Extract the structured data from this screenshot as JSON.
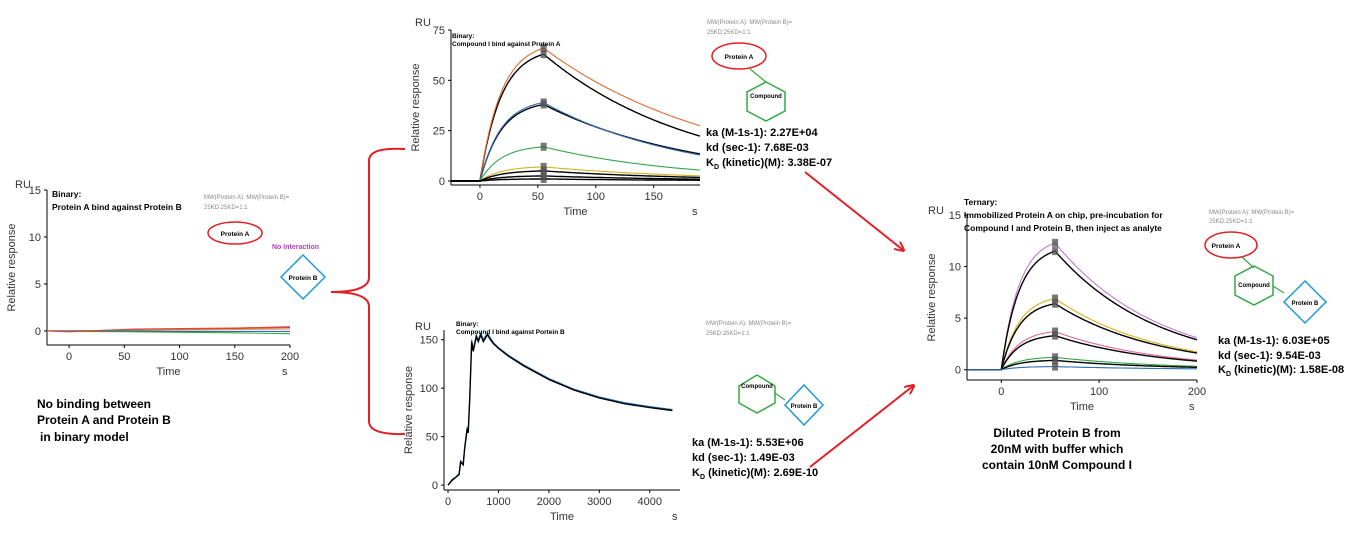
{
  "caption_left": [
    "No binding between",
    "Protein A and Protein B",
    "in binary model"
  ],
  "caption_right": [
    "Diluted Protein B from",
    "20nM with buffer which",
    "contain 10nM Compound I"
  ],
  "mw_note": "MW(Protein A): MW(Protein B)=",
  "mw_ratio": "25KD:25KD=1:1",
  "no_interaction": "No Interaction",
  "labels": {
    "protein_a": "Protein A",
    "protein_b": "Protein B",
    "compound": "Compound"
  },
  "kinetics_top": {
    "ka": "ka (M-1s-1): 2.27E+04",
    "kd": "kd (sec-1): 7.68E-03",
    "kD_prefix": "K",
    "kD_sub": "D",
    "kD_rest": " (kinetic)(M): 3.38E-07"
  },
  "kinetics_bottom": {
    "ka": "ka (M-1s-1): 5.53E+06",
    "kd": "kd (sec-1): 1.49E-03",
    "kD_prefix": "K",
    "kD_sub": "D",
    "kD_rest": " (kinetic)(M): 2.69E-10"
  },
  "kinetics_right": {
    "ka": "ka (M-1s-1): 6.03E+05",
    "kd": "kd (sec-1): 9.54E-03",
    "kD_prefix": "K",
    "kD_sub": "D",
    "kD_rest": " (kinetic)(M): 1.58E-08"
  },
  "colors": {
    "red": "#e41e25",
    "green": "#33a845",
    "blue": "#1a9bd6",
    "purple": "#b042b8",
    "ink": "#000000",
    "grey": "#888888"
  },
  "chart_data": [
    {
      "id": "left",
      "type": "line",
      "title": [
        "Binary:",
        "Protein A bind against Protein B"
      ],
      "unit_label": "RU",
      "ylabel": "Relative response",
      "xlabel": "Time",
      "xunit": "s",
      "xlim": [
        -20,
        200
      ],
      "ylim": [
        -1.5,
        15
      ],
      "xticks": [
        0,
        50,
        100,
        150,
        200
      ],
      "yticks": [
        0,
        5,
        10,
        15
      ],
      "series": [
        {
          "color": "#b042b8",
          "values": [
            [
              -20,
              0
            ],
            [
              0,
              0
            ],
            [
              60,
              0.1
            ],
            [
              100,
              0.15
            ],
            [
              150,
              0.25
            ],
            [
              200,
              0.35
            ]
          ]
        },
        {
          "color": "#e8a020",
          "values": [
            [
              -20,
              0
            ],
            [
              0,
              0
            ],
            [
              60,
              0.05
            ],
            [
              100,
              0.1
            ],
            [
              150,
              0.15
            ],
            [
              200,
              0.2
            ]
          ]
        },
        {
          "color": "#33a845",
          "values": [
            [
              -20,
              0
            ],
            [
              0,
              -0.05
            ],
            [
              60,
              -0.1
            ],
            [
              100,
              -0.15
            ],
            [
              150,
              -0.2
            ],
            [
              200,
              -0.3
            ]
          ]
        },
        {
          "color": "#2f6fb5",
          "values": [
            [
              -20,
              0
            ],
            [
              0,
              0
            ],
            [
              60,
              0
            ],
            [
              100,
              -0.05
            ],
            [
              150,
              -0.05
            ],
            [
              200,
              -0.05
            ]
          ]
        },
        {
          "color": "#e04a2a",
          "values": [
            [
              -20,
              0
            ],
            [
              0,
              -0.1
            ],
            [
              60,
              0.2
            ],
            [
              100,
              0.25
            ],
            [
              150,
              0.3
            ],
            [
              200,
              0.45
            ]
          ]
        }
      ]
    },
    {
      "id": "top",
      "type": "line",
      "title": [
        "Binary:",
        "Compound I bind against Protein A"
      ],
      "unit_label": "RU",
      "ylabel": "Relative response",
      "xlabel": "Time",
      "xunit": "s",
      "xlim": [
        -25,
        190
      ],
      "ylim": [
        -2,
        75
      ],
      "xticks": [
        0,
        50,
        100,
        150
      ],
      "yticks": [
        0,
        25,
        50,
        75
      ],
      "series": [
        {
          "color": "#000000",
          "kind": "assoc",
          "plateau": 63,
          "decay": 0.0077
        },
        {
          "color": "#e36a2e",
          "kind": "assoc",
          "plateau": 66,
          "decay": 0.0065
        },
        {
          "color": "#000000",
          "kind": "assoc",
          "plateau": 38,
          "decay": 0.0077
        },
        {
          "color": "#2f6fb5",
          "kind": "assoc",
          "plateau": 39,
          "decay": 0.0082
        },
        {
          "color": "#33a845",
          "kind": "assoc",
          "plateau": 17,
          "decay": 0.0085
        },
        {
          "color": "#d6b51a",
          "kind": "assoc",
          "plateau": 7,
          "decay": 0.0075
        },
        {
          "color": "#000000",
          "kind": "assoc",
          "plateau": 5,
          "decay": 0.0077
        },
        {
          "color": "#000000",
          "kind": "assoc",
          "plateau": 2.5,
          "decay": 0.0077
        },
        {
          "color": "#000000",
          "kind": "assoc",
          "plateau": 1,
          "decay": 0.0077
        }
      ],
      "assoc_end": 55
    },
    {
      "id": "bottom",
      "type": "line",
      "title": [
        "Binary:",
        "Compound I bind against Portein B"
      ],
      "unit_label": "RU",
      "ylabel": "Relative response",
      "xlabel": "Time",
      "xunit": "s",
      "xlim": [
        -80,
        4600
      ],
      "ylim": [
        -5,
        160
      ],
      "xticks": [
        0,
        1000,
        2000,
        3000,
        4000
      ],
      "yticks": [
        0,
        50,
        100,
        150
      ],
      "series": [
        {
          "color": "#1f6fb2",
          "values": [
            [
              0,
              0
            ],
            [
              80,
              6
            ],
            [
              150,
              8
            ],
            [
              220,
              12
            ],
            [
              250,
              25
            ],
            [
              300,
              22
            ],
            [
              330,
              40
            ],
            [
              380,
              60
            ],
            [
              400,
              55
            ],
            [
              430,
              90
            ],
            [
              470,
              150
            ],
            [
              500,
              140
            ],
            [
              560,
              155
            ],
            [
              600,
              150
            ],
            [
              650,
              157
            ],
            [
              700,
              150
            ],
            [
              780,
              157
            ],
            [
              840,
              152
            ],
            [
              900,
              147
            ],
            [
              1000,
              142
            ],
            [
              1200,
              134
            ],
            [
              1500,
              124
            ],
            [
              2000,
              110
            ],
            [
              2500,
              99
            ],
            [
              3000,
              91
            ],
            [
              3500,
              85
            ],
            [
              4000,
              81
            ],
            [
              4450,
              78
            ]
          ]
        },
        {
          "color": "#000000",
          "values": [
            [
              0,
              0
            ],
            [
              80,
              5
            ],
            [
              150,
              8
            ],
            [
              220,
              11
            ],
            [
              250,
              24
            ],
            [
              300,
              21
            ],
            [
              330,
              38
            ],
            [
              380,
              58
            ],
            [
              400,
              54
            ],
            [
              430,
              88
            ],
            [
              470,
              148
            ],
            [
              500,
              138
            ],
            [
              560,
              153
            ],
            [
              600,
              148
            ],
            [
              650,
              155
            ],
            [
              700,
              148
            ],
            [
              780,
              155
            ],
            [
              840,
              150
            ],
            [
              900,
              146
            ],
            [
              1000,
              141
            ],
            [
              1200,
              133
            ],
            [
              1500,
              123
            ],
            [
              2000,
              109
            ],
            [
              2500,
              98
            ],
            [
              3000,
              90
            ],
            [
              3500,
              84
            ],
            [
              4000,
              80
            ],
            [
              4450,
              77
            ]
          ]
        }
      ]
    },
    {
      "id": "right",
      "type": "line",
      "title": [
        "Ternary:",
        "Immobilized Protein A on chip, pre-incubation for",
        "Compound I and Protein B, then inject as analyte"
      ],
      "unit_label": "RU",
      "ylabel": "Relative response",
      "xlabel": "Time",
      "xunit": "s",
      "xlim": [
        -35,
        200
      ],
      "ylim": [
        -1,
        15
      ],
      "xticks": [
        0,
        100,
        200
      ],
      "yticks": [
        0,
        5,
        10,
        15
      ],
      "series": [
        {
          "color": "#c678d0",
          "kind": "assoc",
          "plateau": 12.3,
          "decay": 0.0095
        },
        {
          "color": "#000000",
          "kind": "assoc",
          "plateau": 11.5,
          "decay": 0.0095
        },
        {
          "color": "#d6b51a",
          "kind": "assoc",
          "plateau": 6.9,
          "decay": 0.0095
        },
        {
          "color": "#000000",
          "kind": "assoc",
          "plateau": 6.4,
          "decay": 0.0095
        },
        {
          "color": "#e36a9a",
          "kind": "assoc",
          "plateau": 3.7,
          "decay": 0.0095
        },
        {
          "color": "#000000",
          "kind": "assoc",
          "plateau": 3.3,
          "decay": 0.0095
        },
        {
          "color": "#33a845",
          "kind": "assoc",
          "plateau": 1.2,
          "decay": 0.009
        },
        {
          "color": "#000000",
          "kind": "assoc",
          "plateau": 0.9,
          "decay": 0.0095
        },
        {
          "color": "#2f6fb5",
          "kind": "assoc",
          "plateau": 0.3,
          "decay": 0.009
        }
      ],
      "assoc_end": 55
    }
  ]
}
